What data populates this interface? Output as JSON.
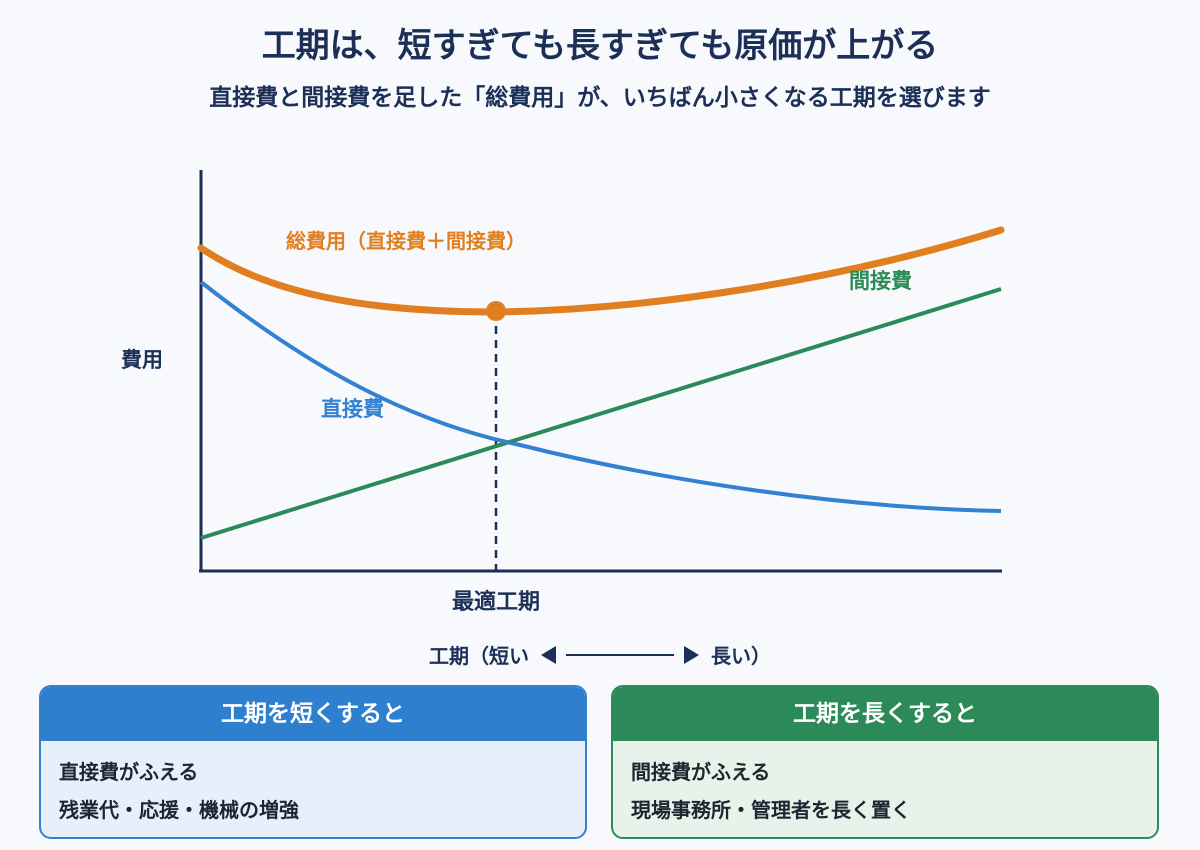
{
  "header": {
    "title": "工期は、短すぎても長すぎても原価が上がる",
    "subtitle": "直接費と間接費を足した「総費用」が、いちばん小さくなる工期を選びます"
  },
  "diagram": {
    "y_axis_label": "費用",
    "optimal_label": "最適工期",
    "curves": {
      "total": {
        "label": "総費用（直接費＋間接費）",
        "color": "#e17f20"
      },
      "indirect": {
        "label": "間接費",
        "color": "#2b8a57"
      },
      "direct": {
        "label": "直接費",
        "color": "#3381d0"
      }
    }
  },
  "axis_note": {
    "left": "工期（短い",
    "right": "長い）"
  },
  "cards": {
    "short": {
      "header": "工期を短くすると",
      "items": [
        "直接費がふえる",
        "残業代・応援・機械の増強"
      ]
    },
    "long": {
      "header": "工期を長くすると",
      "items": [
        "間接費がふえる",
        "現場事務所・管理者を長く置く"
      ]
    }
  }
}
